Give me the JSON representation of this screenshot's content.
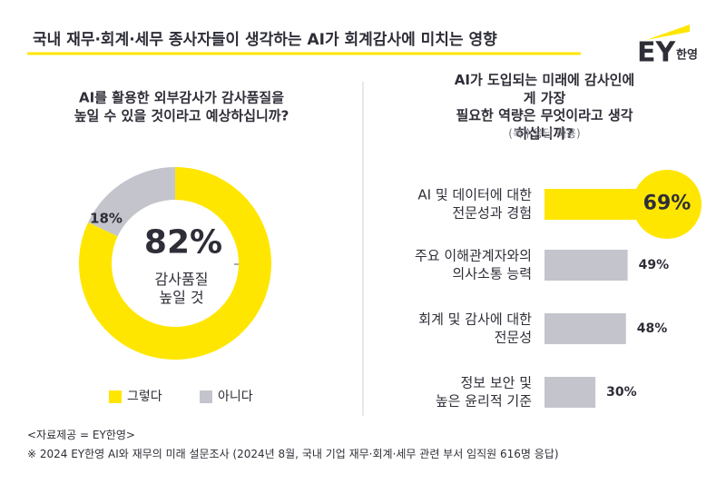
{
  "header": {
    "title": "국내 재무·회계·세무 종사자들이 생각하는 AI가 회계감사에 미치는 영향",
    "logo": "EY",
    "logo_sub": "한영"
  },
  "chart_data": [
    {
      "type": "pie",
      "title": "AI를 활용한 외부감사가 감사품질을\n높일 수 있을 것이라고 예상하십니까?",
      "categories": [
        "그렇다",
        "아니다"
      ],
      "values": [
        82,
        18
      ],
      "value_labels": [
        "82%",
        "18%"
      ],
      "colors": [
        "#ffe600",
        "#c4c4cd"
      ],
      "center_label": "감사품질\n높일 것",
      "legend": "bottom"
    },
    {
      "type": "bar",
      "title": "AI가 도입되는 미래에 감사인에게 가장\n필요한 역량은 무엇이라고 생각하십니까?",
      "subtitle": "(복수응답 허용)",
      "categories": [
        "AI 및 데이터에 대한\n전문성과 경험",
        "주요 이해관계자와의\n의사소통 능력",
        "회계 및 감사에 대한\n전문성",
        "정보 보안 및\n높은 윤리적 기준"
      ],
      "values": [
        69,
        49,
        48,
        30
      ],
      "value_labels": [
        "69%",
        "49%",
        "48%",
        "30%"
      ],
      "colors": [
        "#ffe600",
        "#c4c4cd",
        "#c4c4cd",
        "#c4c4cd"
      ]
    }
  ],
  "footer": {
    "source": "<자료제공 = EY한영>",
    "note": "※ 2024 EY한영 AI와 재무의 미래 설문조사 (2024년 8월, 국내 기업 재무·회계·세무 관련 부서 임직원 616명 응답)"
  }
}
